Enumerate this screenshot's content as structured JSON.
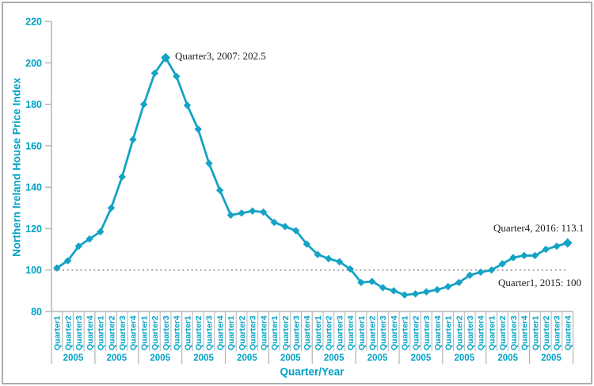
{
  "colors": {
    "accent_text": "#00a2c6",
    "line": "#14a3c4",
    "axis": "#b3b3b3",
    "reference": "#8c8c8c",
    "annotation": "#1a1a1a",
    "frame": "#aaaeb1"
  },
  "chart_data": {
    "type": "line",
    "title": "",
    "ylabel": "Northern Ireland House Price Index",
    "xlabel": "Quarter/Year",
    "ylim": [
      80,
      220
    ],
    "yticks": [
      220,
      200,
      180,
      160,
      140,
      120,
      100,
      80
    ],
    "grid": "off",
    "legend": "none",
    "x_axis": {
      "quarter_labels": [
        "Quarter1",
        "Quarter2",
        "Quarter3",
        "Quarter4"
      ],
      "year_group_labels": [
        "2005",
        "2005",
        "2005",
        "2005",
        "2005",
        "2005",
        "2005",
        "2005",
        "2005",
        "2005",
        "2005",
        "2005"
      ]
    },
    "series": [
      {
        "name": "Northern Ireland House Price Index",
        "marker": "diamond",
        "values": [
          101,
          104.5,
          111.5,
          115,
          118.5,
          130,
          145,
          163,
          180,
          195,
          202.5,
          193.5,
          179.5,
          168,
          151.5,
          138.5,
          126.5,
          127.5,
          128.5,
          128,
          123,
          121,
          119,
          112.5,
          107.5,
          105.5,
          104,
          100.5,
          94,
          94.5,
          91.5,
          90,
          88,
          88.5,
          89.5,
          90.5,
          92,
          94,
          97.5,
          99,
          100,
          103,
          106,
          107,
          107,
          110,
          111.5,
          113.1
        ]
      }
    ],
    "reference_line": {
      "y": 100,
      "style": "dotted"
    },
    "annotations": [
      {
        "text": "Quarter3, 2007: 202.5",
        "point_index": 10,
        "value": 202.5,
        "emphasized_marker": true
      },
      {
        "text": "Quarter4, 2016: 113.1",
        "point_index": 47,
        "value": 113.1,
        "emphasized_marker": true
      },
      {
        "text": "Quarter1, 2015: 100",
        "point_index": 40,
        "value": 100,
        "emphasized_marker": false
      }
    ]
  }
}
